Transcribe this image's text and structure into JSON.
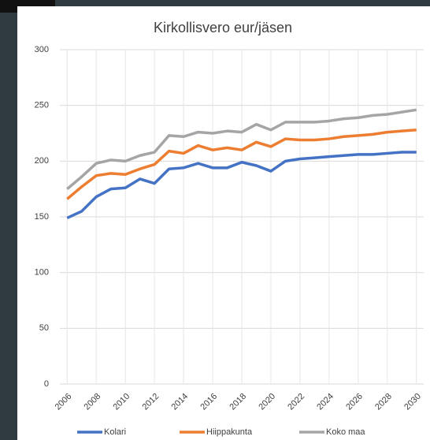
{
  "chart_data": {
    "type": "line",
    "title": "Kirkollisvero eur/jäsen",
    "x": [
      2006,
      2007,
      2008,
      2009,
      2010,
      2011,
      2012,
      2013,
      2014,
      2015,
      2016,
      2017,
      2018,
      2019,
      2020,
      2021,
      2022,
      2023,
      2024,
      2025,
      2026,
      2027,
      2028,
      2029,
      2030
    ],
    "series": [
      {
        "name": "Kolari",
        "color": "#4472c4",
        "values": [
          149,
          155,
          168,
          175,
          176,
          184,
          180,
          193,
          194,
          198,
          194,
          194,
          199,
          196,
          191,
          200,
          202,
          203,
          204,
          205,
          206,
          206,
          207,
          208,
          208
        ]
      },
      {
        "name": "Hiippakunta",
        "color": "#ed7d31",
        "values": [
          166,
          177,
          187,
          189,
          188,
          193,
          197,
          209,
          207,
          214,
          210,
          212,
          210,
          217,
          213,
          220,
          219,
          219,
          220,
          222,
          223,
          224,
          226,
          227,
          228
        ]
      },
      {
        "name": "Koko maa",
        "color": "#a5a5a5",
        "values": [
          175,
          186,
          198,
          201,
          200,
          205,
          208,
          223,
          222,
          226,
          225,
          227,
          226,
          233,
          228,
          235,
          235,
          235,
          236,
          238,
          239,
          241,
          242,
          244,
          246
        ]
      }
    ],
    "xlim": [
      2005.5,
      2030.5
    ],
    "xticks": [
      2006,
      2008,
      2010,
      2012,
      2014,
      2016,
      2018,
      2020,
      2022,
      2024,
      2026,
      2028,
      2030
    ],
    "ylim": [
      0,
      300
    ],
    "yticks": [
      0,
      50,
      100,
      150,
      200,
      250,
      300
    ],
    "grid": true,
    "legend": "bottom"
  }
}
